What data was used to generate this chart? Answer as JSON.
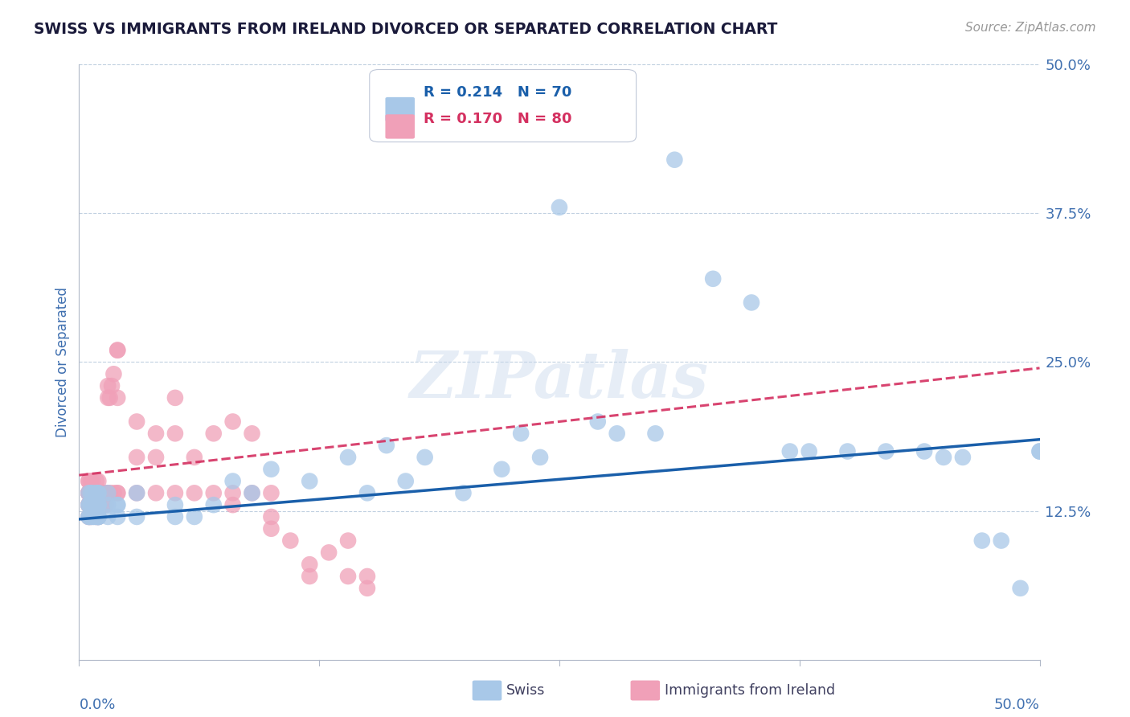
{
  "title": "SWISS VS IMMIGRANTS FROM IRELAND DIVORCED OR SEPARATED CORRELATION CHART",
  "source": "Source: ZipAtlas.com",
  "ylabel": "Divorced or Separated",
  "legend_swiss": "Swiss",
  "legend_ireland": "Immigrants from Ireland",
  "xlim": [
    0.0,
    0.5
  ],
  "ylim": [
    0.0,
    0.5
  ],
  "yticks": [
    0.125,
    0.25,
    0.375,
    0.5
  ],
  "ytick_labels": [
    "12.5%",
    "25.0%",
    "37.5%",
    "50.0%"
  ],
  "xtick_labels": [
    "0.0%",
    "50.0%"
  ],
  "R_swiss": 0.214,
  "N_swiss": 70,
  "R_ireland": 0.17,
  "N_ireland": 80,
  "swiss_color": "#a8c8e8",
  "ireland_color": "#f0a0b8",
  "swiss_line_color": "#1a5faa",
  "ireland_line_color": "#d43060",
  "background_color": "#ffffff",
  "grid_color": "#c0d0e0",
  "watermark": "ZIPatlas",
  "title_color": "#1a1a3a",
  "tick_label_color": "#4070b0",
  "source_color": "#999999",
  "swiss_x": [
    0.005,
    0.005,
    0.005,
    0.005,
    0.005,
    0.006,
    0.006,
    0.006,
    0.007,
    0.007,
    0.007,
    0.008,
    0.008,
    0.008,
    0.009,
    0.009,
    0.01,
    0.01,
    0.01,
    0.01,
    0.01,
    0.01,
    0.01,
    0.01,
    0.01,
    0.01,
    0.015,
    0.015,
    0.015,
    0.02,
    0.02,
    0.02,
    0.03,
    0.03,
    0.05,
    0.05,
    0.06,
    0.07,
    0.08,
    0.09,
    0.1,
    0.12,
    0.14,
    0.15,
    0.16,
    0.17,
    0.18,
    0.2,
    0.22,
    0.23,
    0.24,
    0.25,
    0.27,
    0.28,
    0.3,
    0.31,
    0.33,
    0.35,
    0.37,
    0.38,
    0.4,
    0.42,
    0.44,
    0.45,
    0.46,
    0.47,
    0.48,
    0.49,
    0.5,
    0.5
  ],
  "swiss_y": [
    0.13,
    0.14,
    0.12,
    0.13,
    0.12,
    0.12,
    0.14,
    0.13,
    0.12,
    0.13,
    0.14,
    0.13,
    0.12,
    0.13,
    0.12,
    0.14,
    0.13,
    0.14,
    0.12,
    0.13,
    0.12,
    0.14,
    0.13,
    0.12,
    0.12,
    0.13,
    0.12,
    0.13,
    0.14,
    0.13,
    0.12,
    0.13,
    0.14,
    0.12,
    0.12,
    0.13,
    0.12,
    0.13,
    0.15,
    0.14,
    0.16,
    0.15,
    0.17,
    0.14,
    0.18,
    0.15,
    0.17,
    0.14,
    0.16,
    0.19,
    0.17,
    0.38,
    0.2,
    0.19,
    0.19,
    0.42,
    0.32,
    0.3,
    0.175,
    0.175,
    0.175,
    0.175,
    0.175,
    0.17,
    0.17,
    0.1,
    0.1,
    0.06,
    0.175,
    0.175
  ],
  "ireland_x": [
    0.005,
    0.005,
    0.005,
    0.005,
    0.005,
    0.005,
    0.005,
    0.005,
    0.005,
    0.005,
    0.006,
    0.006,
    0.006,
    0.006,
    0.006,
    0.007,
    0.007,
    0.007,
    0.007,
    0.008,
    0.008,
    0.008,
    0.009,
    0.009,
    0.009,
    0.009,
    0.01,
    0.01,
    0.01,
    0.01,
    0.01,
    0.01,
    0.012,
    0.012,
    0.013,
    0.013,
    0.014,
    0.014,
    0.015,
    0.015,
    0.015,
    0.016,
    0.016,
    0.017,
    0.018,
    0.018,
    0.02,
    0.02,
    0.02,
    0.02,
    0.02,
    0.03,
    0.03,
    0.03,
    0.04,
    0.04,
    0.04,
    0.05,
    0.05,
    0.05,
    0.06,
    0.06,
    0.07,
    0.07,
    0.08,
    0.08,
    0.08,
    0.09,
    0.09,
    0.1,
    0.1,
    0.1,
    0.11,
    0.12,
    0.12,
    0.13,
    0.14,
    0.14,
    0.15,
    0.15
  ],
  "ireland_y": [
    0.14,
    0.13,
    0.15,
    0.14,
    0.13,
    0.12,
    0.14,
    0.15,
    0.13,
    0.14,
    0.13,
    0.15,
    0.14,
    0.13,
    0.12,
    0.14,
    0.13,
    0.15,
    0.13,
    0.14,
    0.13,
    0.14,
    0.15,
    0.13,
    0.14,
    0.12,
    0.14,
    0.13,
    0.12,
    0.14,
    0.15,
    0.13,
    0.14,
    0.13,
    0.14,
    0.13,
    0.14,
    0.13,
    0.22,
    0.23,
    0.14,
    0.22,
    0.14,
    0.23,
    0.24,
    0.14,
    0.26,
    0.22,
    0.14,
    0.26,
    0.14,
    0.2,
    0.17,
    0.14,
    0.19,
    0.17,
    0.14,
    0.19,
    0.22,
    0.14,
    0.14,
    0.17,
    0.19,
    0.14,
    0.2,
    0.14,
    0.13,
    0.19,
    0.14,
    0.14,
    0.12,
    0.11,
    0.1,
    0.08,
    0.07,
    0.09,
    0.07,
    0.1,
    0.07,
    0.06
  ]
}
